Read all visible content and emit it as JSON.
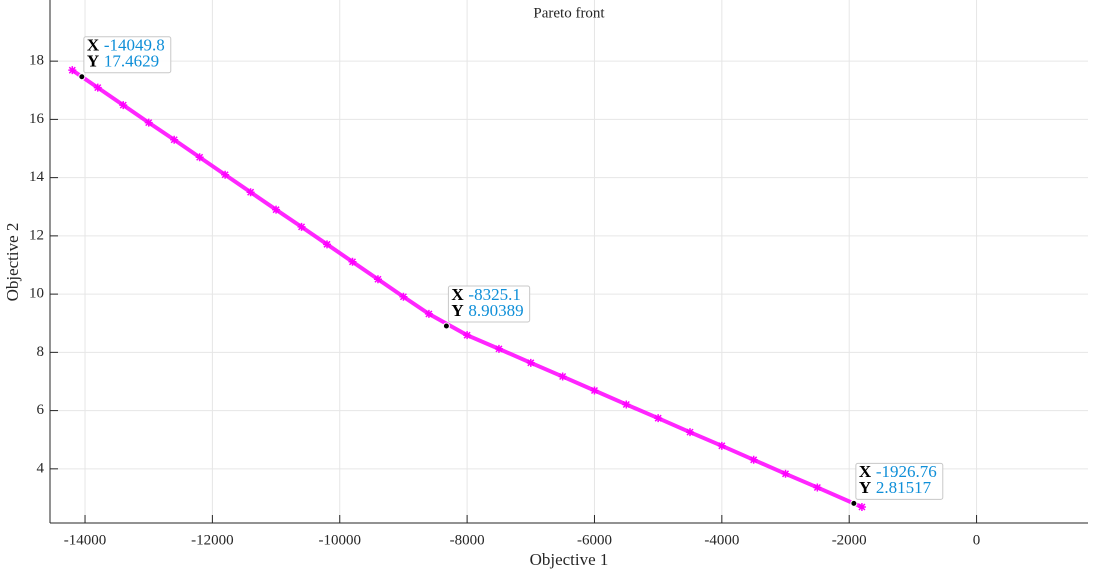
{
  "chart_data": {
    "type": "scatter",
    "title": "Pareto front",
    "xlabel": "Objective 1",
    "ylabel": "Objective 2",
    "x": [
      -14200,
      -13800,
      -13400,
      -13000,
      -12600,
      -12200,
      -11800,
      -11400,
      -11000,
      -10600,
      -10200,
      -9800,
      -9400,
      -9000,
      -8600,
      -8000,
      -7500,
      -7000,
      -6500,
      -6000,
      -5500,
      -5000,
      -4500,
      -4000,
      -3500,
      -3000,
      -2500,
      -1800
    ],
    "series": [
      {
        "color": "#ff00ff",
        "values": [
          17.69,
          17.09,
          16.49,
          15.89,
          15.3,
          14.7,
          14.1,
          13.5,
          12.9,
          12.31,
          11.71,
          11.11,
          10.51,
          9.91,
          9.32,
          8.59,
          8.12,
          7.64,
          7.17,
          6.69,
          6.21,
          5.74,
          5.26,
          4.79,
          4.31,
          3.83,
          3.36,
          2.69
        ]
      }
    ],
    "xlim": [
      -14550,
      1750
    ],
    "ylim": [
      2.14,
      20.1
    ],
    "xticks": [
      -14000,
      -12000,
      -10000,
      -8000,
      -6000,
      -4000,
      -2000,
      0
    ],
    "yticks": [
      4,
      6,
      8,
      10,
      12,
      14,
      16,
      18
    ],
    "grid": true,
    "datatip_labels": [
      "X",
      "Y"
    ],
    "datatips": [
      {
        "x": -14049.8,
        "y": 17.4629
      },
      {
        "x": -8325.1,
        "y": 8.90389
      },
      {
        "x": -1926.76,
        "y": 2.81517
      }
    ]
  }
}
